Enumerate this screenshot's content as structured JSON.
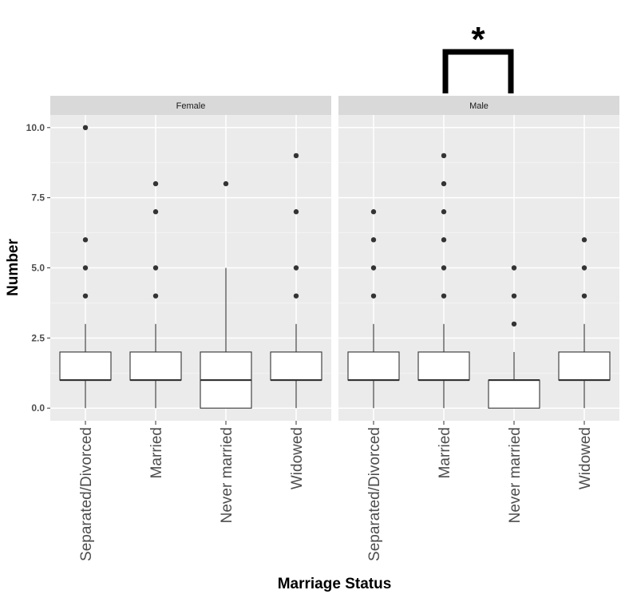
{
  "chart_data": {
    "type": "box",
    "xlabel": "Marriage Status",
    "ylabel": "Number",
    "ylim": [
      -0.45,
      10.45
    ],
    "yticks": [
      0.0,
      2.5,
      5.0,
      7.5,
      10.0
    ],
    "ytick_labels": [
      "0.0",
      "2.5",
      "5.0",
      "7.5",
      "10.0"
    ],
    "categories": [
      "Separated/Divorced",
      "Married",
      "Never married",
      "Widowed"
    ],
    "grid": true,
    "facets": [
      {
        "label": "Female",
        "boxes": [
          {
            "category": "Separated/Divorced",
            "whisker_low": 0,
            "q1": 1,
            "median": 1,
            "q3": 2,
            "whisker_high": 3,
            "outliers": [
              4,
              5,
              6,
              10
            ]
          },
          {
            "category": "Married",
            "whisker_low": 0,
            "q1": 1,
            "median": 1,
            "q3": 2,
            "whisker_high": 3,
            "outliers": [
              4,
              5,
              7,
              8
            ]
          },
          {
            "category": "Never married",
            "whisker_low": 0,
            "q1": 0,
            "median": 1,
            "q3": 2,
            "whisker_high": 5,
            "outliers": [
              8
            ]
          },
          {
            "category": "Widowed",
            "whisker_low": 0,
            "q1": 1,
            "median": 1,
            "q3": 2,
            "whisker_high": 3,
            "outliers": [
              4,
              5,
              7,
              9
            ]
          }
        ]
      },
      {
        "label": "Male",
        "boxes": [
          {
            "category": "Separated/Divorced",
            "whisker_low": 0,
            "q1": 1,
            "median": 1,
            "q3": 2,
            "whisker_high": 3,
            "outliers": [
              4,
              5,
              6,
              7
            ]
          },
          {
            "category": "Married",
            "whisker_low": 0,
            "q1": 1,
            "median": 1,
            "q3": 2,
            "whisker_high": 3,
            "outliers": [
              4,
              5,
              6,
              7,
              8,
              9
            ]
          },
          {
            "category": "Never married",
            "whisker_low": 0,
            "q1": 0,
            "median": 1,
            "q3": 1,
            "whisker_high": 2,
            "outliers": [
              3,
              4,
              5
            ]
          },
          {
            "category": "Widowed",
            "whisker_low": 0,
            "q1": 1,
            "median": 1,
            "q3": 2,
            "whisker_high": 3,
            "outliers": [
              4,
              5,
              6
            ]
          }
        ]
      }
    ],
    "annotation": {
      "text": "*",
      "facet": "Male",
      "between": [
        "Married",
        "Never married"
      ]
    }
  }
}
